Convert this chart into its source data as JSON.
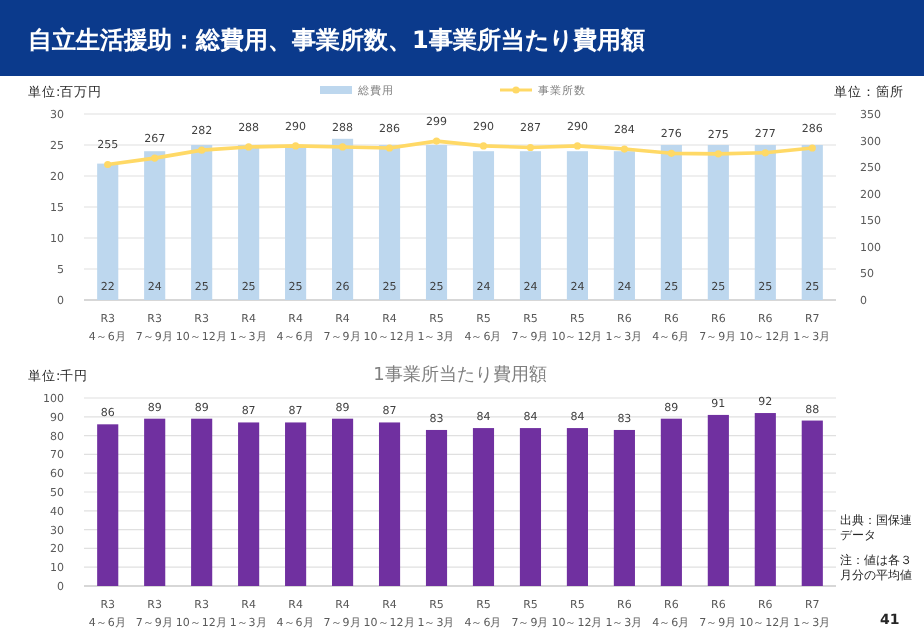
{
  "chart_data": [
    {
      "type": "bar",
      "title": "自立生活援助：総費用、事業所数、1事業所当たり費用額",
      "ylabel": "単位:百万円",
      "y2label": "単位：箇所",
      "categories": [
        "R3\n4～6月",
        "R3\n7～9月",
        "R3\n10～12月",
        "R4\n1～3月",
        "R4\n4～6月",
        "R4\n7～9月",
        "R4\n10～12月",
        "R5\n1～3月",
        "R5\n4～6月",
        "R5\n7～9月",
        "R5\n10～12月",
        "R6\n1～3月",
        "R6\n4～6月",
        "R6\n7～9月",
        "R6\n10～12月",
        "R7\n1～3月"
      ],
      "series": [
        {
          "name": "総費用",
          "color": "#bdd7ee",
          "values": [
            22,
            24,
            25,
            25,
            25,
            26,
            25,
            25,
            24,
            24,
            24,
            24,
            25,
            25,
            25,
            25
          ]
        },
        {
          "name": "事業所数",
          "type": "line",
          "axis": "y2",
          "color": "#ffd966",
          "marker": "circle",
          "values": [
            255,
            267,
            282,
            288,
            290,
            288,
            286,
            299,
            290,
            287,
            290,
            284,
            276,
            275,
            277,
            286
          ]
        }
      ],
      "ylim": [
        0,
        30
      ],
      "yticks": [
        0,
        5,
        10,
        15,
        20,
        25,
        30
      ],
      "y2lim": [
        0,
        350
      ],
      "y2ticks": [
        0,
        50,
        100,
        150,
        200,
        250,
        300,
        350
      ],
      "grid": "y",
      "legend": "top",
      "data_labels": true
    },
    {
      "type": "bar",
      "title": "1事業所当たり費用額",
      "ylabel": "単位:千円",
      "categories": [
        "R3\n4～6月",
        "R3\n7～9月",
        "R3\n10～12月",
        "R4\n1～3月",
        "R4\n4～6月",
        "R4\n7～9月",
        "R4\n10～12月",
        "R5\n1～3月",
        "R5\n4～6月",
        "R5\n7～9月",
        "R5\n10～12月",
        "R6\n1～3月",
        "R6\n4～6月",
        "R6\n7～9月",
        "R6\n10～12月",
        "R7\n1～3月"
      ],
      "series": [
        {
          "color": "#7030a0",
          "values": [
            86,
            89,
            89,
            87,
            87,
            89,
            87,
            83,
            84,
            84,
            84,
            83,
            89,
            91,
            92,
            88
          ]
        }
      ],
      "ylim": [
        0,
        100
      ],
      "yticks": [
        0,
        10,
        20,
        30,
        40,
        50,
        60,
        70,
        80,
        90,
        100
      ],
      "grid": "y",
      "data_labels": true,
      "annotations": [
        "出典：国保連データ",
        "注：値は各３月分の平均値",
        "41"
      ]
    }
  ]
}
